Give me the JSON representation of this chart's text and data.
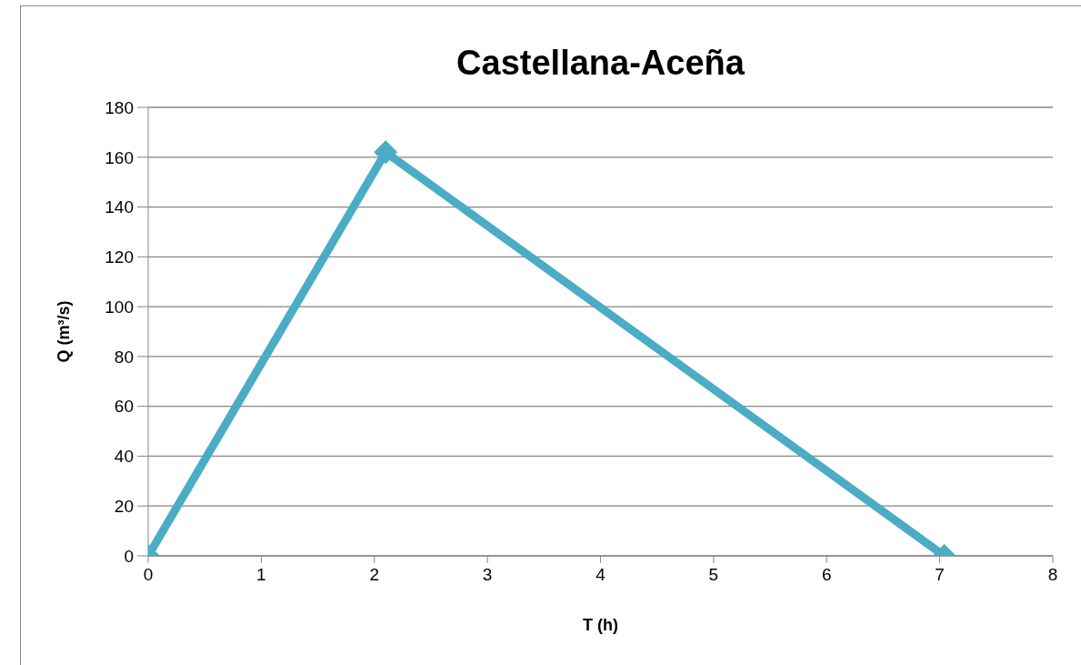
{
  "chart_data": {
    "type": "line",
    "title": "Castellana-Aceña",
    "xlabel": "T (h)",
    "ylabel": "Q (m³/s)",
    "x": [
      0,
      2.1,
      7.04
    ],
    "values": [
      0,
      162,
      0
    ],
    "color": "#4bacc6",
    "xlim": [
      0,
      8
    ],
    "xticks": [
      0,
      1,
      2,
      3,
      4,
      5,
      6,
      7,
      8
    ],
    "ylim": [
      0,
      180
    ],
    "yticks": [
      0,
      20,
      40,
      60,
      80,
      100,
      120,
      140,
      160,
      180
    ],
    "grid": "y",
    "marker": "diamond"
  }
}
